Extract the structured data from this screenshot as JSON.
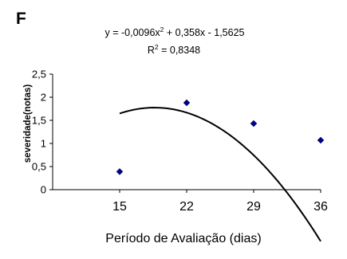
{
  "chart_data": {
    "type": "scatter",
    "panel_label": "F",
    "equation_main": "y = -0,0096x",
    "equation_exp": "2",
    "equation_rest": " + 0,358x - 1,5625",
    "r2_main": "R",
    "r2_exp": "2",
    "r2_rest": " = 0,8348",
    "xlabel": "Período de Avaliação (dias)",
    "ylabel": "severidade(notas)",
    "xlim": [
      8,
      36
    ],
    "ylim": [
      0,
      2.5
    ],
    "x_ticks": [
      15,
      22,
      29,
      36
    ],
    "x_tick_labels": [
      "15",
      "22",
      "29",
      "36"
    ],
    "y_ticks": [
      0,
      0.5,
      1,
      1.5,
      2,
      2.5
    ],
    "y_tick_labels": [
      "0",
      "0,5",
      "1",
      "1,5",
      "2",
      "2,5"
    ],
    "points": [
      {
        "x": 15,
        "y": 0.39
      },
      {
        "x": 22,
        "y": 1.88
      },
      {
        "x": 29,
        "y": 1.43
      },
      {
        "x": 36,
        "y": 1.07
      }
    ],
    "trendline": {
      "type": "polynomial",
      "a": -0.0096,
      "b": 0.358,
      "c": -1.5625,
      "x_from": 15,
      "x_to": 36
    },
    "marker_color": "#000080",
    "trendline_color": "#000000",
    "grid": false,
    "legend": "none"
  }
}
